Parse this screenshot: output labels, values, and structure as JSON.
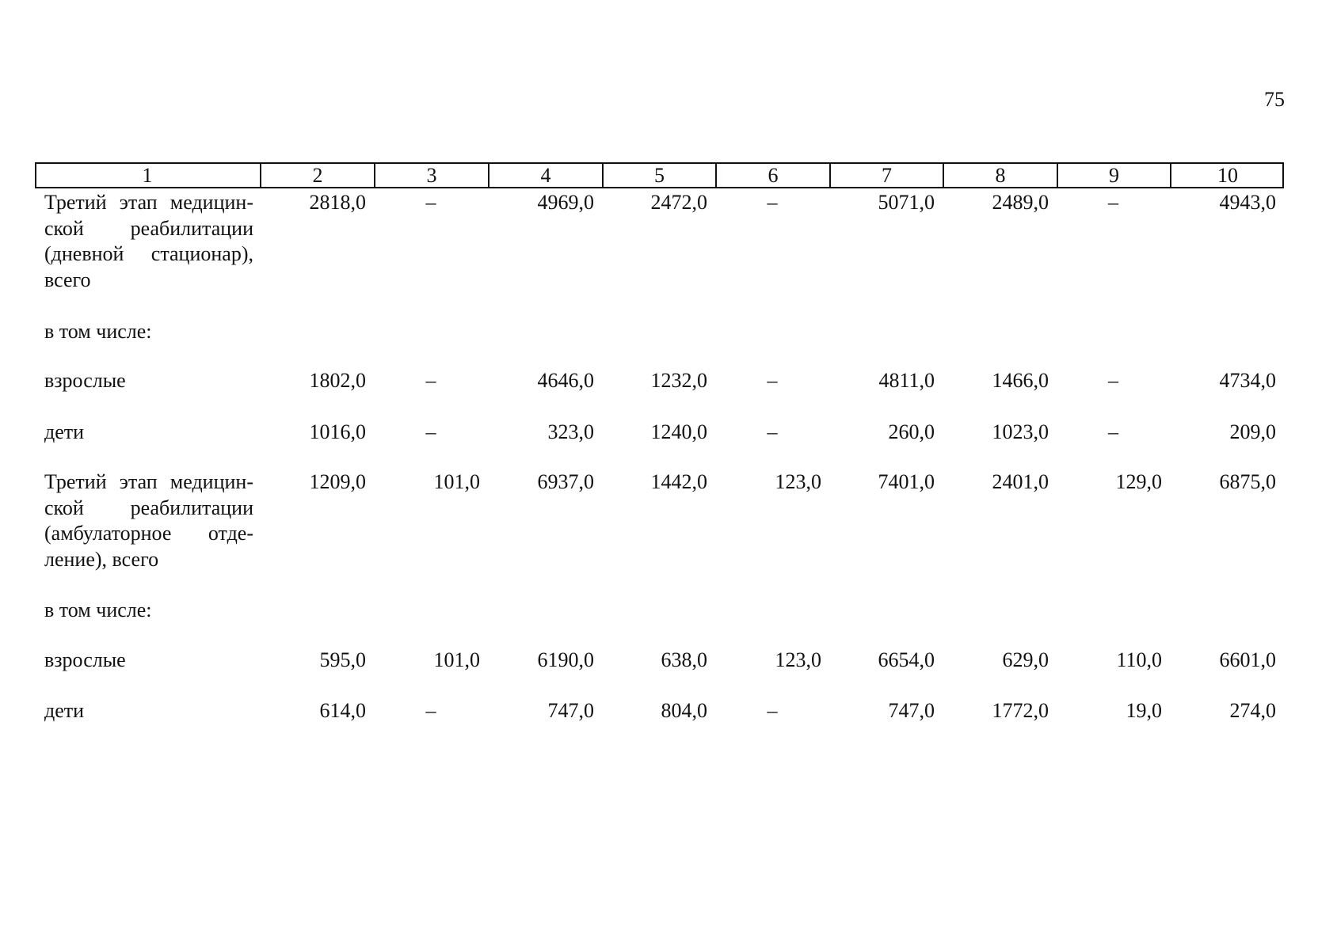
{
  "page_number": "75",
  "table": {
    "header": [
      "1",
      "2",
      "3",
      "4",
      "5",
      "6",
      "7",
      "8",
      "9",
      "10"
    ],
    "rows": [
      {
        "label": [
          "Третий этап медицин-",
          "ской реабилитации",
          "(дневной стационар),",
          "всего"
        ],
        "cells": [
          "2818,0",
          "–",
          "4969,0",
          "2472,0",
          "–",
          "5071,0",
          "2489,0",
          "–",
          "4943,0"
        ]
      },
      {
        "label": [
          "в том числе:"
        ]
      },
      {
        "label": [
          "взрослые"
        ],
        "cells": [
          "1802,0",
          "–",
          "4646,0",
          "1232,0",
          "–",
          "4811,0",
          "1466,0",
          "–",
          "4734,0"
        ]
      },
      {
        "label": [
          "дети"
        ],
        "cells": [
          "1016,0",
          "–",
          "323,0",
          "1240,0",
          "–",
          "260,0",
          "1023,0",
          "–",
          "209,0"
        ]
      },
      {
        "label": [
          "Третий этап медицин-",
          "ской реабилитации",
          "(амбулаторное отде-",
          "ление), всего"
        ],
        "cells": [
          "1209,0",
          "101,0",
          "6937,0",
          "1442,0",
          "123,0",
          "7401,0",
          "2401,0",
          "129,0",
          "6875,0"
        ]
      },
      {
        "label": [
          "в том числе:"
        ]
      },
      {
        "label": [
          "взрослые"
        ],
        "cells": [
          "595,0",
          "101,0",
          "6190,0",
          "638,0",
          "123,0",
          "6654,0",
          "629,0",
          "110,0",
          "6601,0"
        ]
      },
      {
        "label": [
          "дети"
        ],
        "cells": [
          "614,0",
          "–",
          "747,0",
          "804,0",
          "–",
          "747,0",
          "1772,0",
          "19,0",
          "274,0"
        ]
      }
    ]
  }
}
